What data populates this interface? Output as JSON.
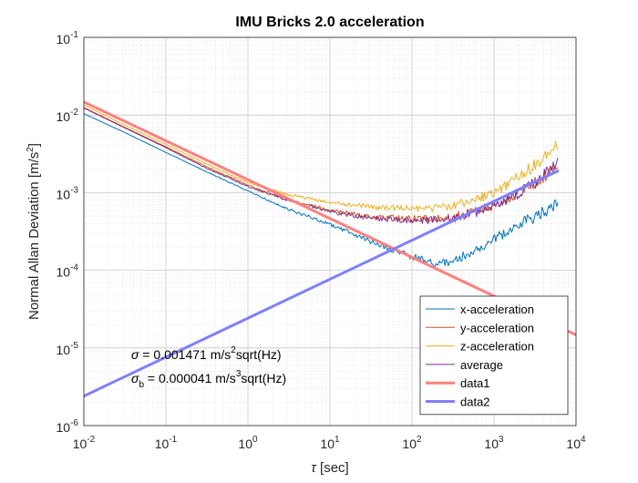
{
  "chart_data": {
    "type": "line",
    "title": "IMU Bricks 2.0 acceleration",
    "xlabel": {
      "symbol": "τ",
      "text": "[sec]"
    },
    "ylabel": {
      "text": "Normal Allan Deviation [m/s",
      "sup": "2",
      "close": "]"
    },
    "x_scale": "log",
    "y_scale": "log",
    "xlim": [
      0.01,
      10000
    ],
    "ylim": [
      1e-06,
      0.1
    ],
    "x_ticks": [
      {
        "base": "10",
        "exp": "-2",
        "value": 0.01
      },
      {
        "base": "10",
        "exp": "-1",
        "value": 0.1
      },
      {
        "base": "10",
        "exp": "0",
        "value": 1
      },
      {
        "base": "10",
        "exp": "1",
        "value": 10
      },
      {
        "base": "10",
        "exp": "2",
        "value": 100
      },
      {
        "base": "10",
        "exp": "3",
        "value": 1000
      },
      {
        "base": "10",
        "exp": "4",
        "value": 10000
      }
    ],
    "y_ticks": [
      {
        "base": "10",
        "exp": "-6",
        "value": 1e-06
      },
      {
        "base": "10",
        "exp": "-5",
        "value": 1e-05
      },
      {
        "base": "10",
        "exp": "-4",
        "value": 0.0001
      },
      {
        "base": "10",
        "exp": "-3",
        "value": 0.001
      },
      {
        "base": "10",
        "exp": "-2",
        "value": 0.01
      },
      {
        "base": "10",
        "exp": "-1",
        "value": 0.1
      }
    ],
    "grid": true,
    "minor_grid": true,
    "legend_position": "bottom-right",
    "series": [
      {
        "name": "x-acceleration",
        "color": "#0072BD",
        "width": 1,
        "x": [
          0.01,
          0.03,
          0.1,
          0.3,
          1,
          3,
          10,
          30,
          100,
          200,
          300,
          600,
          1000,
          2000,
          3000,
          6000
        ],
        "y": [
          0.0104,
          0.0061,
          0.0033,
          0.0019,
          0.00105,
          0.00062,
          0.00039,
          0.00024,
          0.00015,
          0.00012,
          0.00013,
          0.00018,
          0.00025,
          0.00037,
          0.00048,
          0.00072
        ]
      },
      {
        "name": "y-acceleration",
        "color": "#D95319",
        "width": 1,
        "x": [
          0.01,
          0.03,
          0.1,
          0.3,
          1,
          3,
          10,
          30,
          100,
          200,
          300,
          600,
          1000,
          2000,
          3000,
          6000
        ],
        "y": [
          0.0125,
          0.0071,
          0.0039,
          0.0022,
          0.00125,
          0.00082,
          0.00059,
          0.00049,
          0.00046,
          0.00046,
          0.00048,
          0.00057,
          0.00068,
          0.001,
          0.0013,
          0.0022
        ]
      },
      {
        "name": "z-acceleration",
        "color": "#EDB120",
        "width": 1,
        "x": [
          0.01,
          0.03,
          0.1,
          0.3,
          1,
          3,
          10,
          30,
          100,
          200,
          300,
          600,
          1000,
          2000,
          3000,
          6000
        ],
        "y": [
          0.0135,
          0.0076,
          0.0042,
          0.0024,
          0.00135,
          0.00095,
          0.00075,
          0.00066,
          0.00062,
          0.00063,
          0.00067,
          0.00082,
          0.001,
          0.0016,
          0.0022,
          0.0041
        ]
      },
      {
        "name": "average",
        "color": "#7E2F8E",
        "width": 1,
        "x": [
          0.01,
          0.03,
          0.1,
          0.3,
          1,
          3,
          10,
          30,
          100,
          200,
          300,
          600,
          1000,
          2000,
          3000,
          6000
        ],
        "y": [
          0.0123,
          0.007,
          0.0038,
          0.0021,
          0.0012,
          0.0008,
          0.00057,
          0.00047,
          0.00044,
          0.00044,
          0.00046,
          0.00056,
          0.00067,
          0.001,
          0.0013,
          0.0024
        ]
      },
      {
        "name": "data1",
        "color": "#FF7F7F",
        "width": 3,
        "x": [
          0.01,
          10000
        ],
        "y": [
          0.01471,
          1.471e-05
        ]
      },
      {
        "name": "data2",
        "color": "#7F7FFF",
        "width": 3,
        "x": [
          0.01,
          6000
        ],
        "y": [
          2.4e-06,
          0.0019
        ]
      }
    ],
    "annotations": [
      {
        "symbol": "σ",
        "sub": "",
        "value": "= 0.001471 m/s",
        "sup": "2",
        "tail": "sqrt(Hz)"
      },
      {
        "symbol": "σ",
        "sub": "b",
        "value": "= 0.000041 m/s",
        "sup": "3",
        "tail": "sqrt(Hz)"
      }
    ]
  }
}
